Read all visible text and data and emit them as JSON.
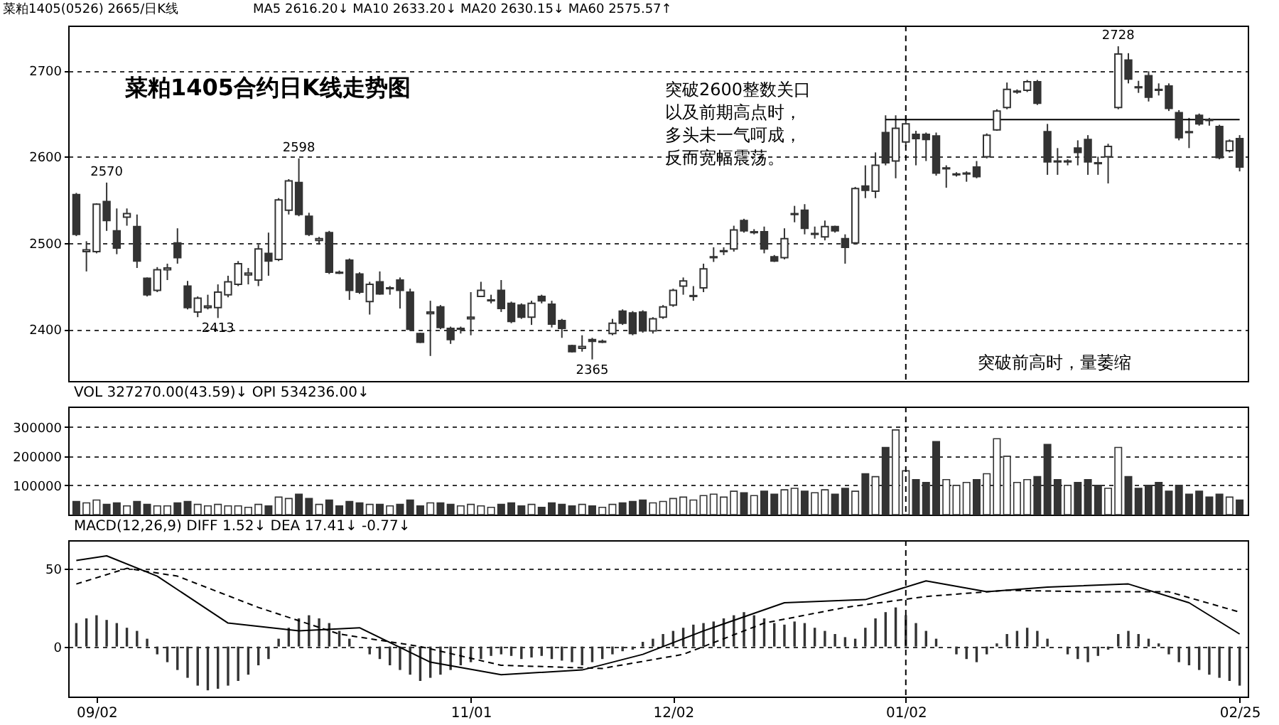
{
  "chart_data": [
    {
      "type": "candlestick",
      "title": "菜粕1405合约日K线走势图",
      "categories": [
        null,
        null,
        "09/02",
        null,
        null,
        null,
        null,
        null,
        null,
        null,
        null,
        null,
        null,
        null,
        null,
        null,
        null,
        null,
        null,
        null,
        null,
        null,
        null,
        null,
        null,
        null,
        null,
        null,
        null,
        null,
        null,
        null,
        null,
        null,
        null,
        null,
        null,
        null,
        null,
        "11/01",
        null,
        null,
        null,
        null,
        null,
        null,
        null,
        null,
        null,
        null,
        null,
        null,
        null,
        null,
        null,
        null,
        null,
        null,
        null,
        "12/02",
        null,
        null,
        null,
        null,
        null,
        null,
        null,
        null,
        null,
        null,
        null,
        null,
        null,
        null,
        null,
        null,
        null,
        null,
        null,
        null,
        null,
        null,
        "01/02",
        null,
        null,
        null,
        null,
        null,
        null,
        null,
        null,
        null,
        null,
        null,
        null,
        null,
        null,
        null,
        null,
        null,
        null,
        null,
        null,
        null,
        null,
        null,
        null,
        null,
        null,
        null,
        null,
        null,
        null,
        null,
        null,
        "02/25"
      ],
      "ohlc": [
        [
          2556,
          2558,
          2508,
          2510
        ],
        [
          2490,
          2502,
          2467,
          2492
        ],
        [
          2490,
          2546,
          2488,
          2545
        ],
        [
          2548,
          2570,
          2514,
          2526
        ],
        [
          2514,
          2540,
          2487,
          2494
        ],
        [
          2530,
          2540,
          2520,
          2534
        ],
        [
          2519,
          2533,
          2471,
          2479
        ],
        [
          2459,
          2460,
          2438,
          2440
        ],
        [
          2445,
          2472,
          2443,
          2469
        ],
        [
          2469,
          2476,
          2457,
          2471
        ],
        [
          2500,
          2517,
          2476,
          2483
        ],
        [
          2450,
          2456,
          2423,
          2425
        ],
        [
          2420,
          2438,
          2414,
          2436
        ],
        [
          2425,
          2440,
          2423,
          2427
        ],
        [
          2425,
          2452,
          2413,
          2443
        ],
        [
          2440,
          2462,
          2437,
          2455
        ],
        [
          2452,
          2479,
          2450,
          2476
        ],
        [
          2463,
          2471,
          2452,
          2465
        ],
        [
          2457,
          2498,
          2450,
          2493
        ],
        [
          2488,
          2512,
          2462,
          2479
        ],
        [
          2481,
          2552,
          2479,
          2550
        ],
        [
          2538,
          2574,
          2533,
          2572
        ],
        [
          2570,
          2598,
          2531,
          2533
        ],
        [
          2531,
          2535,
          2508,
          2510
        ],
        [
          2503,
          2507,
          2498,
          2505
        ],
        [
          2512,
          2514,
          2464,
          2466
        ],
        [
          2466,
          2468,
          2464,
          2465
        ],
        [
          2480,
          2482,
          2434,
          2445
        ],
        [
          2464,
          2466,
          2441,
          2443
        ],
        [
          2432,
          2455,
          2417,
          2452
        ],
        [
          2455,
          2467,
          2440,
          2441
        ],
        [
          2447,
          2450,
          2440,
          2448
        ],
        [
          2457,
          2460,
          2424,
          2445
        ],
        [
          2443,
          2447,
          2398,
          2400
        ],
        [
          2395,
          2396,
          2384,
          2385
        ],
        [
          2418,
          2433,
          2369,
          2420
        ],
        [
          2426,
          2428,
          2400,
          2402
        ],
        [
          2401,
          2403,
          2383,
          2388
        ],
        [
          2400,
          2403,
          2395,
          2401
        ],
        [
          2412,
          2443,
          2393,
          2414
        ],
        [
          2438,
          2455,
          2438,
          2445
        ],
        [
          2433,
          2440,
          2430,
          2434
        ],
        [
          2445,
          2457,
          2420,
          2424
        ],
        [
          2430,
          2432,
          2407,
          2409
        ],
        [
          2428,
          2430,
          2412,
          2414
        ],
        [
          2414,
          2433,
          2405,
          2430
        ],
        [
          2438,
          2440,
          2430,
          2433
        ],
        [
          2429,
          2433,
          2402,
          2406
        ],
        [
          2410,
          2412,
          2390,
          2401
        ],
        [
          2381,
          2382,
          2373,
          2374
        ],
        [
          2378,
          2393,
          2374,
          2380
        ],
        [
          2388,
          2390,
          2365,
          2386
        ],
        [
          2385,
          2388,
          2384,
          2386
        ],
        [
          2395,
          2412,
          2393,
          2407
        ],
        [
          2421,
          2423,
          2405,
          2407
        ],
        [
          2419,
          2421,
          2393,
          2395
        ],
        [
          2420,
          2422,
          2396,
          2398
        ],
        [
          2398,
          2414,
          2395,
          2412
        ],
        [
          2414,
          2428,
          2412,
          2426
        ],
        [
          2428,
          2447,
          2426,
          2445
        ],
        [
          2450,
          2460,
          2440,
          2456
        ],
        [
          2438,
          2450,
          2433,
          2439
        ],
        [
          2448,
          2476,
          2443,
          2470
        ],
        [
          2483,
          2495,
          2478,
          2484
        ],
        [
          2490,
          2495,
          2486,
          2491
        ],
        [
          2493,
          2520,
          2490,
          2515
        ],
        [
          2526,
          2528,
          2512,
          2514
        ],
        [
          2512,
          2516,
          2510,
          2513
        ],
        [
          2513,
          2519,
          2488,
          2493
        ],
        [
          2484,
          2486,
          2478,
          2479
        ],
        [
          2483,
          2517,
          2481,
          2505
        ],
        [
          2533,
          2543,
          2524,
          2534
        ],
        [
          2538,
          2545,
          2510,
          2517
        ],
        [
          2510,
          2519,
          2505,
          2511
        ],
        [
          2507,
          2526,
          2503,
          2519
        ],
        [
          2519,
          2520,
          2512,
          2514
        ],
        [
          2505,
          2510,
          2476,
          2495
        ],
        [
          2500,
          2565,
          2498,
          2563
        ],
        [
          2566,
          2590,
          2552,
          2561
        ],
        [
          2560,
          2605,
          2552,
          2590
        ],
        [
          2628,
          2648,
          2590,
          2593
        ],
        [
          2595,
          2648,
          2575,
          2633
        ],
        [
          2617,
          2648,
          2612,
          2638
        ],
        [
          2626,
          2630,
          2590,
          2621
        ],
        [
          2626,
          2628,
          2595,
          2620
        ],
        [
          2624,
          2628,
          2578,
          2581
        ],
        [
          2586,
          2590,
          2564,
          2587
        ],
        [
          2579,
          2582,
          2577,
          2580
        ],
        [
          2580,
          2583,
          2571,
          2581
        ],
        [
          2588,
          2595,
          2575,
          2577
        ],
        [
          2600,
          2627,
          2598,
          2625
        ],
        [
          2631,
          2655,
          2630,
          2653
        ],
        [
          2657,
          2686,
          2655,
          2678
        ],
        [
          2675,
          2678,
          2673,
          2676
        ],
        [
          2677,
          2689,
          2675,
          2687
        ],
        [
          2687,
          2689,
          2660,
          2662
        ],
        [
          2629,
          2638,
          2579,
          2594
        ],
        [
          2595,
          2610,
          2579,
          2594
        ],
        [
          2594,
          2597,
          2590,
          2595
        ],
        [
          2610,
          2619,
          2590,
          2605
        ],
        [
          2620,
          2625,
          2579,
          2594
        ],
        [
          2593,
          2600,
          2579,
          2592
        ],
        [
          2600,
          2615,
          2569,
          2612
        ],
        [
          2657,
          2728,
          2655,
          2719
        ],
        [
          2712,
          2720,
          2685,
          2690
        ],
        [
          2681,
          2688,
          2674,
          2680
        ],
        [
          2694,
          2699,
          2664,
          2669
        ],
        [
          2678,
          2685,
          2671,
          2677
        ],
        [
          2682,
          2685,
          2653,
          2656
        ],
        [
          2651,
          2654,
          2619,
          2622
        ],
        [
          2629,
          2645,
          2610,
          2628
        ],
        [
          2648,
          2650,
          2636,
          2638
        ],
        [
          2643,
          2645,
          2636,
          2642
        ],
        [
          2635,
          2637,
          2597,
          2599
        ],
        [
          2607,
          2620,
          2605,
          2618
        ],
        [
          2621,
          2625,
          2583,
          2588
        ]
      ],
      "color": "#333333",
      "series": [
        {
          "type": "line",
          "color": "#000000",
          "values": [
            null,
            null,
            null,
            null,
            null,
            null,
            null,
            null,
            null,
            null,
            null,
            null,
            null,
            null,
            null,
            null,
            null,
            null,
            null,
            null,
            null,
            null,
            null,
            null,
            null,
            null,
            null,
            null,
            null,
            null,
            null,
            null,
            null,
            null,
            null,
            null,
            null,
            null,
            null,
            null,
            null,
            null,
            null,
            null,
            null,
            null,
            null,
            null,
            null,
            null,
            null,
            null,
            null,
            null,
            null,
            null,
            null,
            null,
            null,
            null,
            null,
            null,
            null,
            null,
            null,
            null,
            null,
            null,
            null,
            null,
            null,
            null,
            null,
            null,
            null,
            null,
            null,
            null,
            null,
            null,
            2643,
            2643,
            2643,
            2643,
            2643,
            2643,
            2643,
            2643,
            2643,
            2643,
            2643,
            2643,
            2643,
            2643,
            2643,
            2643,
            2643,
            2643,
            2643,
            2643,
            2643,
            2643,
            2643,
            2643,
            2643,
            2643,
            2643,
            2643,
            2643,
            2643,
            2643,
            2643,
            2643,
            2643,
            2643,
            2643
          ]
        }
      ],
      "ylim": [
        2340,
        2752
      ],
      "yticks": [
        2400,
        2500,
        2600,
        2700
      ],
      "grid": "y",
      "tick_labels": "y",
      "ref_lines": [
        {
          "axis": "x",
          "value": "01/02",
          "line_style": "dashed"
        }
      ],
      "annotations": [
        "菜粕1405(0526) 2665/日K线",
        "MA5 2616.20↓   MA10 2633.20↓   MA20 2630.15↓   MA60 2575.57↑",
        "突破2600整数关口以及前期高点时，多头未一气呵成，反而宽幅震荡。",
        "突破前高时，量萎缩",
        {
          "text": "2570",
          "y": 2570
        },
        {
          "text": "2598",
          "y": 2598
        },
        {
          "text": "2413",
          "y": 2413
        },
        {
          "text": "2365",
          "y": 2365
        },
        {
          "text": "2728",
          "y": 2728
        }
      ]
    },
    {
      "type": "bar",
      "categories": [
        null,
        null,
        "09/02",
        null,
        null,
        null,
        null,
        null,
        null,
        null,
        null,
        null,
        null,
        null,
        null,
        null,
        null,
        null,
        null,
        null,
        null,
        null,
        null,
        null,
        null,
        null,
        null,
        null,
        null,
        null,
        null,
        null,
        null,
        null,
        null,
        null,
        null,
        null,
        null,
        "11/01",
        null,
        null,
        null,
        null,
        null,
        null,
        null,
        null,
        null,
        null,
        null,
        null,
        null,
        null,
        null,
        null,
        null,
        null,
        null,
        "12/02",
        null,
        null,
        null,
        null,
        null,
        null,
        null,
        null,
        null,
        null,
        null,
        null,
        null,
        null,
        null,
        null,
        null,
        null,
        null,
        null,
        null,
        null,
        "01/02",
        null,
        null,
        null,
        null,
        null,
        null,
        null,
        null,
        null,
        null,
        null,
        null,
        null,
        null,
        null,
        null,
        null,
        null,
        null,
        null,
        null,
        null,
        null,
        null,
        null,
        null,
        null,
        null,
        null,
        null,
        null,
        null,
        "02/25"
      ],
      "values": [
        45000,
        40000,
        50000,
        35000,
        40000,
        30000,
        45000,
        35000,
        30000,
        30000,
        40000,
        45000,
        35000,
        30000,
        35000,
        30000,
        30000,
        25000,
        35000,
        30000,
        60000,
        55000,
        70000,
        55000,
        35000,
        50000,
        30000,
        45000,
        40000,
        35000,
        35000,
        30000,
        35000,
        50000,
        30000,
        40000,
        40000,
        35000,
        30000,
        35000,
        30000,
        25000,
        35000,
        40000,
        30000,
        35000,
        25000,
        40000,
        35000,
        30000,
        35000,
        30000,
        25000,
        35000,
        40000,
        45000,
        50000,
        40000,
        45000,
        55000,
        60000,
        50000,
        65000,
        70000,
        60000,
        80000,
        75000,
        65000,
        80000,
        70000,
        85000,
        90000,
        80000,
        75000,
        85000,
        70000,
        90000,
        80000,
        140000,
        130000,
        230000,
        290000,
        150000,
        120000,
        110000,
        250000,
        120000,
        100000,
        110000,
        120000,
        140000,
        260000,
        200000,
        110000,
        120000,
        130000,
        240000,
        120000,
        100000,
        110000,
        120000,
        100000,
        90000,
        230000,
        130000,
        90000,
        100000,
        110000,
        80000,
        100000,
        70000,
        80000,
        60000,
        70000,
        60000,
        50000
      ],
      "colors": [
        "#333333",
        "#ffffff",
        "#ffffff",
        "#333333",
        "#333333",
        "#ffffff",
        "#333333",
        "#333333",
        "#ffffff",
        "#ffffff",
        "#333333",
        "#333333",
        "#ffffff",
        "#ffffff",
        "#ffffff",
        "#ffffff",
        "#ffffff",
        "#ffffff",
        "#ffffff",
        "#333333",
        "#ffffff",
        "#ffffff",
        "#333333",
        "#333333",
        "#ffffff",
        "#333333",
        "#333333",
        "#333333",
        "#333333",
        "#ffffff",
        "#333333",
        "#ffffff",
        "#333333",
        "#333333",
        "#333333",
        "#ffffff",
        "#333333",
        "#333333",
        "#ffffff",
        "#ffffff",
        "#ffffff",
        "#ffffff",
        "#333333",
        "#333333",
        "#333333",
        "#ffffff",
        "#333333",
        "#333333",
        "#333333",
        "#333333",
        "#ffffff",
        "#333333",
        "#ffffff",
        "#ffffff",
        "#333333",
        "#333333",
        "#333333",
        "#ffffff",
        "#ffffff",
        "#ffffff",
        "#ffffff",
        "#ffffff",
        "#ffffff",
        "#ffffff",
        "#ffffff",
        "#ffffff",
        "#333333",
        "#ffffff",
        "#333333",
        "#333333",
        "#ffffff",
        "#ffffff",
        "#333333",
        "#ffffff",
        "#ffffff",
        "#333333",
        "#333333",
        "#ffffff",
        "#333333",
        "#ffffff",
        "#333333",
        "#ffffff",
        "#ffffff",
        "#333333",
        "#333333",
        "#333333",
        "#ffffff",
        "#ffffff",
        "#ffffff",
        "#333333",
        "#ffffff",
        "#ffffff",
        "#ffffff",
        "#ffffff",
        "#ffffff",
        "#333333",
        "#333333",
        "#333333",
        "#ffffff",
        "#333333",
        "#333333",
        "#333333",
        "#ffffff",
        "#ffffff",
        "#333333",
        "#333333",
        "#333333",
        "#333333",
        "#333333",
        "#333333",
        "#333333",
        "#333333",
        "#333333",
        "#333333",
        "#ffffff",
        "#333333"
      ],
      "ylim": [
        0,
        370000
      ],
      "yticks": [
        100000,
        200000,
        300000
      ],
      "grid": "y",
      "tick_labels": "y",
      "ref_lines": [
        {
          "axis": "x",
          "value": "01/02",
          "line_style": "dashed"
        }
      ],
      "annotations": [
        "VOL   327270.00(43.59)↓   OPI   534236.00↓"
      ]
    },
    {
      "type": "bar",
      "categories": [
        null,
        null,
        "09/02",
        null,
        null,
        null,
        null,
        null,
        null,
        null,
        null,
        null,
        null,
        null,
        null,
        null,
        null,
        null,
        null,
        null,
        null,
        null,
        null,
        null,
        null,
        null,
        null,
        null,
        null,
        null,
        null,
        null,
        null,
        null,
        null,
        null,
        null,
        null,
        null,
        "11/01",
        null,
        null,
        null,
        null,
        null,
        null,
        null,
        null,
        null,
        null,
        null,
        null,
        null,
        null,
        null,
        null,
        null,
        null,
        null,
        "12/02",
        null,
        null,
        null,
        null,
        null,
        null,
        null,
        null,
        null,
        null,
        null,
        null,
        null,
        null,
        null,
        null,
        null,
        null,
        null,
        null,
        null,
        null,
        "01/02",
        null,
        null,
        null,
        null,
        null,
        null,
        null,
        null,
        null,
        null,
        null,
        null,
        null,
        null,
        null,
        null,
        null,
        null,
        null,
        null,
        null,
        null,
        null,
        null,
        null,
        null,
        null,
        null,
        null,
        null,
        null,
        null,
        "02/25"
      ],
      "series": [
        {
          "type": "bar",
          "color": "#333333",
          "values": [
            15,
            18,
            20,
            17,
            15,
            12,
            10,
            5,
            -5,
            -10,
            -15,
            -20,
            -25,
            -28,
            -27,
            -25,
            -22,
            -18,
            -12,
            -8,
            5,
            12,
            18,
            20,
            18,
            15,
            10,
            5,
            0,
            -5,
            -8,
            -12,
            -15,
            -18,
            -22,
            -20,
            -18,
            -15,
            -12,
            -10,
            -8,
            -6,
            -5,
            -6,
            -8,
            -7,
            -6,
            -8,
            -9,
            -10,
            -12,
            -10,
            -8,
            -5,
            -3,
            -2,
            3,
            5,
            8,
            10,
            12,
            14,
            15,
            16,
            18,
            20,
            22,
            20,
            18,
            15,
            14,
            16,
            15,
            12,
            10,
            8,
            6,
            5,
            12,
            18,
            22,
            25,
            20,
            15,
            10,
            5,
            0,
            -5,
            -8,
            -10,
            -5,
            2,
            8,
            10,
            12,
            10,
            5,
            0,
            -5,
            -8,
            -10,
            -6,
            -2,
            8,
            10,
            8,
            5,
            2,
            -5,
            -10,
            -12,
            -15,
            -18,
            -20,
            -22,
            -25
          ]
        },
        {
          "type": "line",
          "color": "#000000",
          "values": [
            55,
            null,
            null,
            58,
            null,
            null,
            null,
            null,
            45,
            null,
            null,
            null,
            null,
            null,
            null,
            15,
            null,
            null,
            null,
            null,
            null,
            null,
            10,
            null,
            null,
            null,
            null,
            null,
            12,
            null,
            null,
            null,
            null,
            null,
            null,
            -10,
            null,
            null,
            null,
            null,
            null,
            null,
            -18,
            null,
            null,
            null,
            null,
            null,
            null,
            null,
            -15,
            null,
            null,
            null,
            null,
            null,
            -5,
            null,
            null,
            null,
            null,
            null,
            10,
            null,
            null,
            null,
            null,
            null,
            null,
            null,
            28,
            null,
            null,
            null,
            null,
            null,
            null,
            null,
            30,
            null,
            null,
            null,
            null,
            null,
            42,
            null,
            null,
            null,
            null,
            null,
            35,
            null,
            null,
            null,
            null,
            null,
            38,
            null,
            null,
            null,
            null,
            null,
            null,
            null,
            40,
            null,
            null,
            null,
            null,
            null,
            28,
            null,
            null,
            null,
            null,
            8
          ]
        },
        {
          "type": "line",
          "color": "#000000",
          "line_style": "dashed",
          "values": [
            40,
            null,
            null,
            null,
            null,
            50,
            null,
            null,
            null,
            null,
            45,
            null,
            null,
            null,
            null,
            null,
            null,
            null,
            25,
            null,
            null,
            null,
            null,
            null,
            null,
            null,
            8,
            null,
            null,
            null,
            null,
            null,
            null,
            null,
            0,
            null,
            null,
            null,
            null,
            null,
            null,
            null,
            -12,
            null,
            null,
            null,
            null,
            null,
            null,
            null,
            null,
            null,
            -14,
            null,
            null,
            null,
            null,
            null,
            null,
            null,
            -5,
            null,
            null,
            null,
            null,
            null,
            null,
            null,
            15,
            null,
            null,
            null,
            null,
            null,
            null,
            null,
            25,
            null,
            null,
            null,
            null,
            null,
            null,
            null,
            32,
            null,
            null,
            null,
            null,
            null,
            null,
            null,
            36,
            null,
            null,
            null,
            null,
            null,
            null,
            null,
            35,
            null,
            null,
            null,
            null,
            null,
            null,
            null,
            35,
            null,
            null,
            null,
            null,
            null,
            null,
            22
          ]
        }
      ],
      "ylim": [
        -32,
        68
      ],
      "yticks": [
        0,
        50
      ],
      "grid": "y",
      "ref_lines": [
        {
          "axis": "x",
          "value": "01/02",
          "line_style": "dashed"
        }
      ],
      "annotations": [
        "MACD(12,26,9)   DIFF 1.52↓   DEA 17.41↓   -0.77↓"
      ]
    }
  ]
}
